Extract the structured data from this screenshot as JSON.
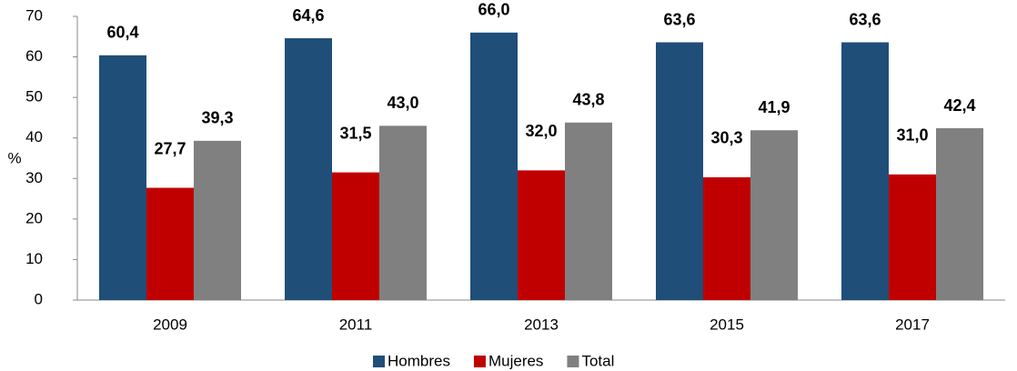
{
  "chart_data": {
    "type": "bar",
    "ylabel": "%",
    "categories": [
      "2009",
      "2011",
      "2013",
      "2015",
      "2017"
    ],
    "series": [
      {
        "name": "Hombres",
        "color": "#1f4e79",
        "values": [
          60.4,
          64.6,
          66.0,
          63.6,
          63.6
        ],
        "value_labels": [
          "60,4",
          "64,6",
          "66,0",
          "63,6",
          "63,6"
        ]
      },
      {
        "name": "Mujeres",
        "color": "#c00000",
        "values": [
          27.7,
          31.5,
          32.0,
          30.3,
          31.0
        ],
        "value_labels": [
          "27,7",
          "31,5",
          "32,0",
          "30,3",
          "31,0"
        ]
      },
      {
        "name": "Total",
        "color": "#808080",
        "values": [
          39.3,
          43.0,
          43.8,
          41.9,
          42.4
        ],
        "value_labels": [
          "39,3",
          "43,0",
          "43,8",
          "41,9",
          "42,4"
        ]
      }
    ],
    "ylim": [
      0,
      70
    ],
    "yticks": [
      0,
      10,
      20,
      30,
      40,
      50,
      60,
      70
    ],
    "grid": false,
    "legend": "bottom"
  }
}
